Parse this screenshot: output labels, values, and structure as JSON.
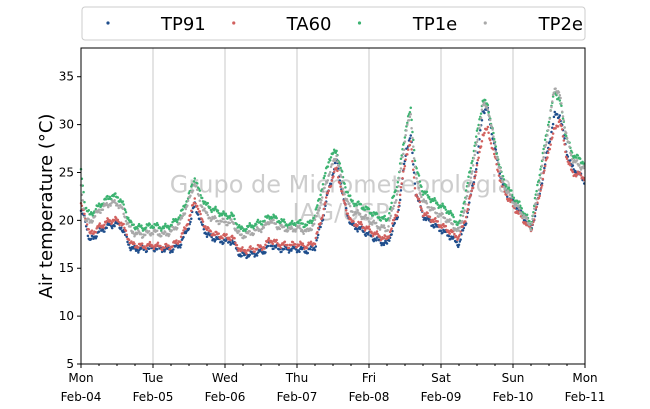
{
  "chart_data": {
    "type": "scatter",
    "ylabel": "Air temperature (°C)",
    "xlabel": "",
    "ylim": [
      5,
      38
    ],
    "yticks": [
      5,
      10,
      15,
      20,
      25,
      30,
      35
    ],
    "x_range": [
      "2021-02-04",
      "2021-02-11"
    ],
    "xticks": [
      {
        "day": "Mon",
        "date": "Feb-04"
      },
      {
        "day": "Tue",
        "date": "Feb-05"
      },
      {
        "day": "Wed",
        "date": "Feb-06"
      },
      {
        "day": "Thu",
        "date": "Feb-07"
      },
      {
        "day": "Fri",
        "date": "Feb-08"
      },
      {
        "day": "Sat",
        "date": "Feb-09"
      },
      {
        "day": "Sun",
        "date": "Feb-10"
      },
      {
        "day": "Mon",
        "date": "Feb-11"
      }
    ],
    "grid": "vertical",
    "legend": "top",
    "watermark": [
      "Grupo de Micrometeorologia",
      "IAG/USP"
    ],
    "series": [
      {
        "name": "TP91",
        "color": "#1f4e8c",
        "points": [
          [
            0.0,
            21.0
          ],
          [
            0.06,
            20.0
          ],
          [
            0.12,
            17.8
          ],
          [
            0.25,
            18.8
          ],
          [
            0.4,
            19.5
          ],
          [
            0.5,
            19.6
          ],
          [
            0.56,
            19.3
          ],
          [
            0.7,
            17.0
          ],
          [
            0.85,
            17.0
          ],
          [
            1.0,
            17.1
          ],
          [
            1.15,
            17.0
          ],
          [
            1.25,
            16.9
          ],
          [
            1.38,
            17.5
          ],
          [
            1.52,
            19.8
          ],
          [
            1.58,
            21.8
          ],
          [
            1.65,
            20.0
          ],
          [
            1.75,
            18.5
          ],
          [
            1.88,
            18.0
          ],
          [
            2.0,
            17.8
          ],
          [
            2.1,
            17.8
          ],
          [
            2.22,
            16.3
          ],
          [
            2.4,
            16.5
          ],
          [
            2.55,
            16.8
          ],
          [
            2.62,
            17.5
          ],
          [
            2.75,
            17.0
          ],
          [
            2.9,
            17.0
          ],
          [
            3.0,
            17.0
          ],
          [
            3.15,
            16.8
          ],
          [
            3.25,
            17.2
          ],
          [
            3.35,
            20.0
          ],
          [
            3.45,
            23.5
          ],
          [
            3.55,
            26.3
          ],
          [
            3.65,
            22.0
          ],
          [
            3.75,
            19.5
          ],
          [
            3.9,
            19.0
          ],
          [
            4.0,
            18.5
          ],
          [
            4.1,
            18.0
          ],
          [
            4.25,
            17.5
          ],
          [
            4.4,
            20.5
          ],
          [
            4.52,
            27.5
          ],
          [
            4.58,
            28.8
          ],
          [
            4.65,
            23.0
          ],
          [
            4.75,
            20.5
          ],
          [
            4.9,
            19.5
          ],
          [
            5.0,
            19.0
          ],
          [
            5.1,
            18.5
          ],
          [
            5.25,
            17.5
          ],
          [
            5.35,
            20.0
          ],
          [
            5.5,
            26.0
          ],
          [
            5.58,
            31.5
          ],
          [
            5.65,
            31.5
          ],
          [
            5.75,
            27.5
          ],
          [
            5.85,
            24.0
          ],
          [
            5.92,
            22.5
          ],
          [
            6.0,
            22.0
          ],
          [
            6.1,
            21.0
          ],
          [
            6.25,
            19.0
          ],
          [
            6.35,
            22.0
          ],
          [
            6.5,
            28.0
          ],
          [
            6.58,
            31.0
          ],
          [
            6.65,
            31.0
          ],
          [
            6.75,
            27.0
          ],
          [
            6.82,
            25.5
          ],
          [
            6.9,
            25.0
          ],
          [
            7.0,
            24.0
          ]
        ]
      },
      {
        "name": "TA60",
        "color": "#d1605e",
        "points": [
          [
            0.0,
            21.5
          ],
          [
            0.06,
            20.5
          ],
          [
            0.12,
            18.5
          ],
          [
            0.25,
            19.3
          ],
          [
            0.4,
            20.0
          ],
          [
            0.5,
            20.0
          ],
          [
            0.56,
            19.8
          ],
          [
            0.7,
            17.5
          ],
          [
            0.85,
            17.3
          ],
          [
            1.0,
            17.4
          ],
          [
            1.15,
            17.2
          ],
          [
            1.25,
            17.3
          ],
          [
            1.38,
            18.0
          ],
          [
            1.52,
            20.5
          ],
          [
            1.58,
            22.3
          ],
          [
            1.65,
            20.6
          ],
          [
            1.75,
            19.0
          ],
          [
            1.88,
            18.5
          ],
          [
            2.0,
            18.3
          ],
          [
            2.1,
            18.2
          ],
          [
            2.22,
            16.8
          ],
          [
            2.4,
            17.0
          ],
          [
            2.55,
            17.3
          ],
          [
            2.62,
            18.0
          ],
          [
            2.75,
            17.5
          ],
          [
            2.9,
            17.4
          ],
          [
            3.0,
            17.5
          ],
          [
            3.15,
            17.3
          ],
          [
            3.25,
            17.8
          ],
          [
            3.35,
            20.5
          ],
          [
            3.45,
            23.5
          ],
          [
            3.55,
            25.5
          ],
          [
            3.65,
            22.0
          ],
          [
            3.75,
            19.8
          ],
          [
            3.9,
            19.5
          ],
          [
            4.0,
            19.0
          ],
          [
            4.1,
            18.5
          ],
          [
            4.25,
            18.0
          ],
          [
            4.4,
            21.0
          ],
          [
            4.52,
            27.0
          ],
          [
            4.58,
            28.0
          ],
          [
            4.65,
            22.8
          ],
          [
            4.75,
            20.8
          ],
          [
            4.9,
            20.0
          ],
          [
            5.0,
            19.5
          ],
          [
            5.1,
            19.0
          ],
          [
            5.25,
            18.2
          ],
          [
            5.35,
            20.5
          ],
          [
            5.5,
            25.5
          ],
          [
            5.58,
            29.0
          ],
          [
            5.65,
            29.5
          ],
          [
            5.75,
            26.5
          ],
          [
            5.85,
            23.5
          ],
          [
            5.92,
            22.5
          ],
          [
            6.0,
            21.5
          ],
          [
            6.1,
            20.5
          ],
          [
            6.25,
            19.0
          ],
          [
            6.35,
            22.0
          ],
          [
            6.5,
            27.5
          ],
          [
            6.58,
            29.5
          ],
          [
            6.65,
            30.5
          ],
          [
            6.75,
            26.5
          ],
          [
            6.82,
            25.0
          ],
          [
            6.9,
            24.8
          ],
          [
            7.0,
            24.5
          ]
        ]
      },
      {
        "name": "TP1e",
        "color": "#3cb371",
        "points": [
          [
            0.0,
            25.0
          ],
          [
            0.06,
            21.5
          ],
          [
            0.12,
            20.5
          ],
          [
            0.25,
            21.5
          ],
          [
            0.4,
            22.5
          ],
          [
            0.5,
            22.5
          ],
          [
            0.56,
            22.0
          ],
          [
            0.7,
            19.5
          ],
          [
            0.85,
            19.2
          ],
          [
            1.0,
            19.5
          ],
          [
            1.15,
            19.2
          ],
          [
            1.25,
            19.5
          ],
          [
            1.38,
            20.5
          ],
          [
            1.52,
            23.0
          ],
          [
            1.58,
            24.5
          ],
          [
            1.65,
            22.8
          ],
          [
            1.75,
            21.5
          ],
          [
            1.88,
            21.0
          ],
          [
            2.0,
            20.5
          ],
          [
            2.1,
            20.5
          ],
          [
            2.22,
            19.0
          ],
          [
            2.4,
            19.5
          ],
          [
            2.55,
            20.0
          ],
          [
            2.62,
            20.5
          ],
          [
            2.75,
            20.0
          ],
          [
            2.9,
            19.5
          ],
          [
            3.0,
            19.8
          ],
          [
            3.15,
            19.5
          ],
          [
            3.25,
            20.5
          ],
          [
            3.35,
            23.5
          ],
          [
            3.45,
            26.5
          ],
          [
            3.55,
            27.3
          ],
          [
            3.65,
            24.0
          ],
          [
            3.75,
            22.0
          ],
          [
            3.9,
            21.5
          ],
          [
            4.0,
            21.0
          ],
          [
            4.1,
            20.5
          ],
          [
            4.25,
            20.0
          ],
          [
            4.4,
            24.0
          ],
          [
            4.52,
            30.0
          ],
          [
            4.58,
            31.5
          ],
          [
            4.65,
            25.5
          ],
          [
            4.75,
            23.0
          ],
          [
            4.9,
            22.0
          ],
          [
            5.0,
            21.5
          ],
          [
            5.1,
            21.0
          ],
          [
            5.25,
            19.5
          ],
          [
            5.35,
            23.0
          ],
          [
            5.5,
            29.0
          ],
          [
            5.58,
            32.5
          ],
          [
            5.65,
            32.0
          ],
          [
            5.75,
            28.0
          ],
          [
            5.85,
            24.5
          ],
          [
            5.92,
            23.5
          ],
          [
            6.0,
            22.5
          ],
          [
            6.1,
            21.5
          ],
          [
            6.25,
            19.5
          ],
          [
            6.35,
            24.0
          ],
          [
            6.5,
            30.5
          ],
          [
            6.58,
            33.5
          ],
          [
            6.65,
            32.5
          ],
          [
            6.75,
            28.5
          ],
          [
            6.82,
            27.0
          ],
          [
            6.9,
            26.5
          ],
          [
            7.0,
            26.0
          ]
        ]
      },
      {
        "name": "TP2e",
        "color": "#a9a9a9",
        "points": [
          [
            0.0,
            23.5
          ],
          [
            0.06,
            20.0
          ],
          [
            0.12,
            19.8
          ],
          [
            0.25,
            21.0
          ],
          [
            0.4,
            21.8
          ],
          [
            0.5,
            21.8
          ],
          [
            0.56,
            21.3
          ],
          [
            0.7,
            18.8
          ],
          [
            0.85,
            18.5
          ],
          [
            1.0,
            18.8
          ],
          [
            1.15,
            18.5
          ],
          [
            1.25,
            18.8
          ],
          [
            1.38,
            19.8
          ],
          [
            1.52,
            22.5
          ],
          [
            1.58,
            24.0
          ],
          [
            1.65,
            22.0
          ],
          [
            1.75,
            20.5
          ],
          [
            1.88,
            20.0
          ],
          [
            2.0,
            19.8
          ],
          [
            2.1,
            19.8
          ],
          [
            2.22,
            18.3
          ],
          [
            2.4,
            18.8
          ],
          [
            2.55,
            19.3
          ],
          [
            2.62,
            20.0
          ],
          [
            2.75,
            19.3
          ],
          [
            2.9,
            19.0
          ],
          [
            3.0,
            19.2
          ],
          [
            3.15,
            18.8
          ],
          [
            3.25,
            19.8
          ],
          [
            3.35,
            22.5
          ],
          [
            3.45,
            25.0
          ],
          [
            3.55,
            26.8
          ],
          [
            3.65,
            23.0
          ],
          [
            3.75,
            21.0
          ],
          [
            3.9,
            20.5
          ],
          [
            4.0,
            20.0
          ],
          [
            4.1,
            19.5
          ],
          [
            4.25,
            19.0
          ],
          [
            4.4,
            23.0
          ],
          [
            4.52,
            29.5
          ],
          [
            4.58,
            31.0
          ],
          [
            4.65,
            24.5
          ],
          [
            4.75,
            22.0
          ],
          [
            4.9,
            21.0
          ],
          [
            5.0,
            20.5
          ],
          [
            5.1,
            20.0
          ],
          [
            5.25,
            18.8
          ],
          [
            5.35,
            22.0
          ],
          [
            5.5,
            28.0
          ],
          [
            5.58,
            32.0
          ],
          [
            5.65,
            31.8
          ],
          [
            5.75,
            27.8
          ],
          [
            5.85,
            24.0
          ],
          [
            5.92,
            23.0
          ],
          [
            6.0,
            22.0
          ],
          [
            6.1,
            21.0
          ],
          [
            6.25,
            19.3
          ],
          [
            6.35,
            23.0
          ],
          [
            6.5,
            30.0
          ],
          [
            6.58,
            34.0
          ],
          [
            6.65,
            33.0
          ],
          [
            6.75,
            28.5
          ],
          [
            6.82,
            26.5
          ],
          [
            6.9,
            25.8
          ],
          [
            7.0,
            25.5
          ]
        ]
      }
    ]
  }
}
